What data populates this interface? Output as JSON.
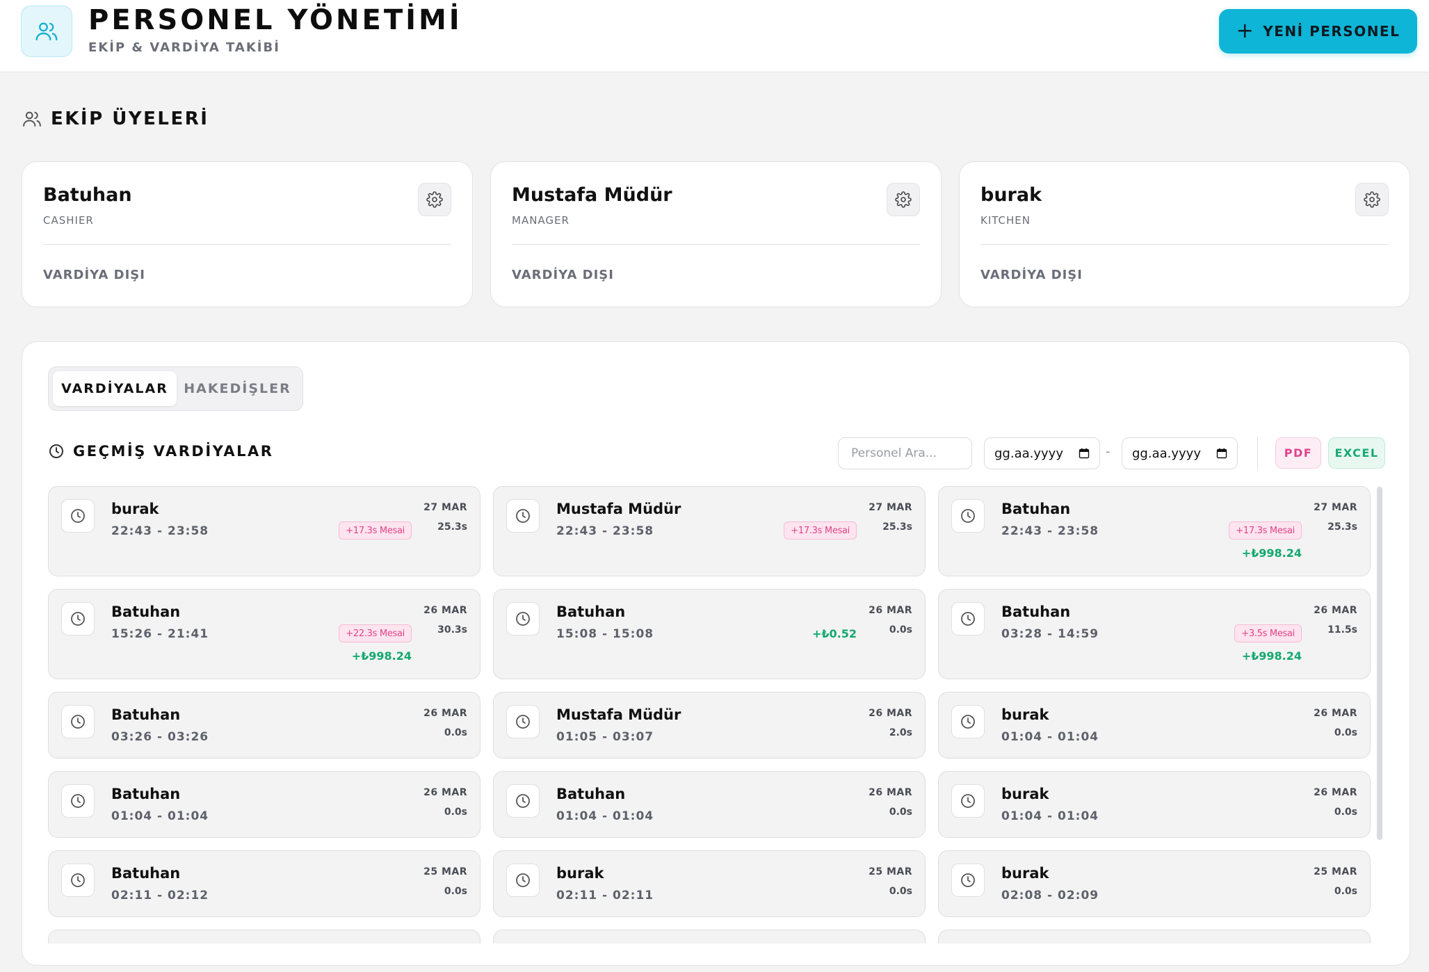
{
  "header": {
    "title": "PERSONEL YÖNETİMİ",
    "subtitle": "EKİP & VARDİYA TAKİBİ",
    "new_button_label": "YENİ PERSONEL",
    "new_button_icon": "plus-icon",
    "logo_icon": "users-icon"
  },
  "team_section": {
    "title": "EKİP ÜYELERİ",
    "icon": "users-icon",
    "members": [
      {
        "name": "Batuhan",
        "role": "CASHIER",
        "status": "VARDİYA DIŞI"
      },
      {
        "name": "Mustafa Müdür",
        "role": "MANAGER",
        "status": "VARDİYA DIŞI"
      },
      {
        "name": "burak",
        "role": "KITCHEN",
        "status": "VARDİYA DIŞI"
      }
    ]
  },
  "tabs": [
    {
      "label": "VARDİYALAR",
      "active": true
    },
    {
      "label": "HAKEDİŞLER",
      "active": false
    }
  ],
  "history": {
    "title": "GEÇMİŞ VARDİYALAR",
    "search_placeholder": "Personel Ara...",
    "date_from_placeholder": "gg.aa.yyyy",
    "date_to_placeholder": "gg.aa.yyyy",
    "date_separator": "-",
    "pdf_label": "PDF",
    "excel_label": "EXCEL"
  },
  "shifts": [
    {
      "name": "burak",
      "time": "22:43 - 23:58",
      "date": "27 MAR",
      "duration": "25.3s",
      "overtime": "+17.3s Mesai",
      "earning": ""
    },
    {
      "name": "Mustafa Müdür",
      "time": "22:43 - 23:58",
      "date": "27 MAR",
      "duration": "25.3s",
      "overtime": "+17.3s Mesai",
      "earning": ""
    },
    {
      "name": "Batuhan",
      "time": "22:43 - 23:58",
      "date": "27 MAR",
      "duration": "25.3s",
      "overtime": "+17.3s Mesai",
      "earning": "+₺998.24"
    },
    {
      "name": "Batuhan",
      "time": "15:26 - 21:41",
      "date": "26 MAR",
      "duration": "30.3s",
      "overtime": "+22.3s Mesai",
      "earning": "+₺998.24"
    },
    {
      "name": "Batuhan",
      "time": "15:08 - 15:08",
      "date": "26 MAR",
      "duration": "0.0s",
      "overtime": "",
      "earning": "+₺0.52"
    },
    {
      "name": "Batuhan",
      "time": "03:28 - 14:59",
      "date": "26 MAR",
      "duration": "11.5s",
      "overtime": "+3.5s Mesai",
      "earning": "+₺998.24"
    },
    {
      "name": "Batuhan",
      "time": "03:26 - 03:26",
      "date": "26 MAR",
      "duration": "0.0s",
      "overtime": "",
      "earning": ""
    },
    {
      "name": "Mustafa Müdür",
      "time": "01:05 - 03:07",
      "date": "26 MAR",
      "duration": "2.0s",
      "overtime": "",
      "earning": ""
    },
    {
      "name": "burak",
      "time": "01:04 - 01:04",
      "date": "26 MAR",
      "duration": "0.0s",
      "overtime": "",
      "earning": ""
    },
    {
      "name": "Batuhan",
      "time": "01:04 - 01:04",
      "date": "26 MAR",
      "duration": "0.0s",
      "overtime": "",
      "earning": ""
    },
    {
      "name": "Batuhan",
      "time": "01:04 - 01:04",
      "date": "26 MAR",
      "duration": "0.0s",
      "overtime": "",
      "earning": ""
    },
    {
      "name": "burak",
      "time": "01:04 - 01:04",
      "date": "26 MAR",
      "duration": "0.0s",
      "overtime": "",
      "earning": ""
    },
    {
      "name": "Batuhan",
      "time": "02:11 - 02:12",
      "date": "25 MAR",
      "duration": "0.0s",
      "overtime": "",
      "earning": ""
    },
    {
      "name": "burak",
      "time": "02:11 - 02:11",
      "date": "25 MAR",
      "duration": "0.0s",
      "overtime": "",
      "earning": ""
    },
    {
      "name": "burak",
      "time": "02:08 - 02:09",
      "date": "25 MAR",
      "duration": "0.0s",
      "overtime": "",
      "earning": ""
    }
  ],
  "colors": {
    "accent": "#0fb5d6",
    "overtime_pink": "#e0448c",
    "earning_green": "#13a86d",
    "excel_green": "#17a974"
  }
}
